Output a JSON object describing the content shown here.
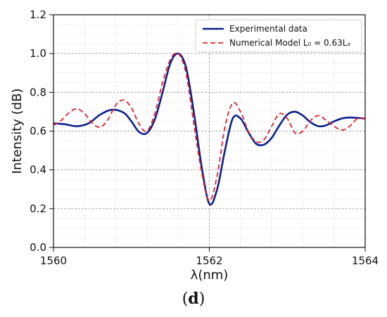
{
  "panel_label": {
    "open": "(",
    "letter": "d",
    "close": ")"
  },
  "chart_data": {
    "type": "line",
    "xlabel": "λ(nm)",
    "ylabel": "Intensity (dB)",
    "xlim": [
      1560,
      1564
    ],
    "ylim": [
      0.0,
      1.2
    ],
    "x_ticks": [
      1560,
      1562,
      1564
    ],
    "x_tick_labels": [
      "1560",
      "1562",
      "1564"
    ],
    "y_ticks": [
      0.0,
      0.2,
      0.4,
      0.6,
      0.8,
      1.0,
      1.2
    ],
    "y_tick_labels": [
      "0.0",
      "0.2",
      "0.4",
      "0.6",
      "0.8",
      "1.0",
      "1.2"
    ],
    "grid": true,
    "legend_position": "top-right",
    "series": [
      {
        "name": "Experimental data",
        "color": "#0a1f8f",
        "style": "solid",
        "x": [
          1560.0,
          1560.15,
          1560.3,
          1560.45,
          1560.6,
          1560.75,
          1560.9,
          1561.0,
          1561.1,
          1561.2,
          1561.3,
          1561.4,
          1561.5,
          1561.6,
          1561.7,
          1561.8,
          1561.9,
          1562.0,
          1562.1,
          1562.2,
          1562.3,
          1562.4,
          1562.5,
          1562.6,
          1562.7,
          1562.8,
          1562.9,
          1563.0,
          1563.1,
          1563.2,
          1563.3,
          1563.4,
          1563.5,
          1563.6,
          1563.7,
          1563.8,
          1563.9,
          1564.0
        ],
        "y": [
          0.64,
          0.635,
          0.625,
          0.64,
          0.685,
          0.71,
          0.695,
          0.65,
          0.595,
          0.59,
          0.66,
          0.8,
          0.95,
          1.0,
          0.93,
          0.7,
          0.42,
          0.225,
          0.3,
          0.5,
          0.665,
          0.665,
          0.595,
          0.535,
          0.53,
          0.565,
          0.63,
          0.685,
          0.7,
          0.68,
          0.645,
          0.625,
          0.63,
          0.65,
          0.665,
          0.67,
          0.668,
          0.665
        ]
      },
      {
        "name": "Numerical Model L₀ = 0.63Lₐ",
        "color": "#e8202a",
        "style": "dashed",
        "x": [
          1560.0,
          1560.1,
          1560.2,
          1560.3,
          1560.4,
          1560.5,
          1560.6,
          1560.7,
          1560.8,
          1560.9,
          1561.0,
          1561.1,
          1561.2,
          1561.3,
          1561.4,
          1561.5,
          1561.6,
          1561.7,
          1561.8,
          1561.9,
          1562.0,
          1562.1,
          1562.2,
          1562.3,
          1562.4,
          1562.5,
          1562.6,
          1562.7,
          1562.8,
          1562.9,
          1563.0,
          1563.1,
          1563.2,
          1563.3,
          1563.4,
          1563.5,
          1563.6,
          1563.7,
          1563.8,
          1563.9,
          1564.0
        ],
        "y": [
          0.63,
          0.655,
          0.695,
          0.715,
          0.69,
          0.64,
          0.62,
          0.66,
          0.735,
          0.76,
          0.72,
          0.635,
          0.6,
          0.69,
          0.85,
          0.97,
          1.0,
          0.9,
          0.64,
          0.39,
          0.24,
          0.37,
          0.62,
          0.745,
          0.7,
          0.6,
          0.545,
          0.555,
          0.625,
          0.69,
          0.665,
          0.59,
          0.6,
          0.655,
          0.68,
          0.655,
          0.625,
          0.605,
          0.625,
          0.665,
          0.665
        ]
      }
    ]
  }
}
